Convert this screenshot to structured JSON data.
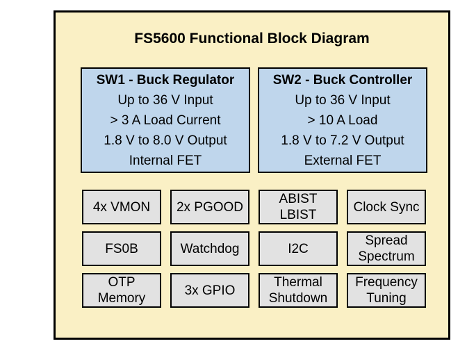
{
  "diagram": {
    "title": "FS5600 Functional Block Diagram",
    "colors": {
      "frame_background": "#FAF0C5",
      "regulator_block_background": "#BFD6EC",
      "feature_block_background": "#E2E2E2",
      "border": "#000000",
      "page_background": "#FFFFFF"
    },
    "regulators": [
      {
        "title": "SW1 - Buck Regulator",
        "lines": [
          "Up to 36 V Input",
          "> 3 A Load Current",
          "1.8 V to 8.0 V Output",
          "Internal FET"
        ]
      },
      {
        "title": "SW2 - Buck Controller",
        "lines": [
          "Up to 36 V Input",
          "> 10 A Load",
          "1.8 V to 7.2 V Output",
          "External FET"
        ]
      }
    ],
    "features": [
      {
        "label": "4x VMON"
      },
      {
        "label": "2x PGOOD"
      },
      {
        "label": "ABIST\nLBIST"
      },
      {
        "label": "Clock Sync"
      },
      {
        "label": "FS0B"
      },
      {
        "label": "Watchdog"
      },
      {
        "label": "I2C"
      },
      {
        "label": "Spread\nSpectrum"
      },
      {
        "label": "OTP\nMemory"
      },
      {
        "label": "3x GPIO"
      },
      {
        "label": "Thermal\nShutdown"
      },
      {
        "label": "Frequency\nTuning"
      }
    ]
  }
}
